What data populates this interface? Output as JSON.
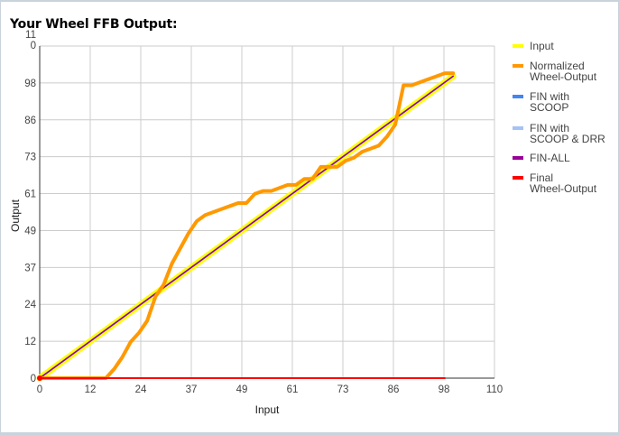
{
  "title": "Your Wheel FFB Output:",
  "chart_data": {
    "type": "line",
    "title": "Your Wheel FFB Output:",
    "xlabel": "Input",
    "ylabel": "Output",
    "xlim": [
      0,
      110
    ],
    "ylim": [
      0,
      110
    ],
    "xticks": [
      "0",
      "12",
      "24",
      "37",
      "49",
      "61",
      "73",
      "86",
      "98",
      "110"
    ],
    "yticks": [
      "0",
      "12",
      "24",
      "37",
      "49",
      "61",
      "73",
      "86",
      "98",
      "11\n0"
    ],
    "grid": true,
    "legend_position": "right",
    "series": [
      {
        "name": "Input",
        "color": "#ffff00",
        "x": [
          0,
          100
        ],
        "y": [
          0,
          100
        ]
      },
      {
        "name": "Normalized\nWheel-Output",
        "color": "#ff9900",
        "x": [
          0,
          2,
          5,
          8,
          11,
          14,
          16,
          18,
          20,
          22,
          24,
          26,
          28,
          30,
          32,
          34,
          36,
          38,
          40,
          42,
          44,
          46,
          48,
          50,
          52,
          54,
          56,
          58,
          60,
          62,
          64,
          66,
          68,
          70,
          72,
          74,
          76,
          78,
          80,
          82,
          84,
          86,
          88,
          90,
          92,
          94,
          96,
          98,
          100
        ],
        "y": [
          0,
          0,
          0,
          0,
          0,
          0,
          0,
          3,
          7,
          12,
          15,
          19,
          27,
          31,
          38,
          43,
          48,
          52,
          54,
          55,
          56,
          57,
          58,
          58,
          61,
          62,
          62,
          63,
          64,
          64,
          66,
          66,
          70,
          70,
          70,
          72,
          73,
          75,
          76,
          77,
          80,
          84,
          97,
          97,
          98,
          99,
          100,
          101,
          101
        ]
      },
      {
        "name": "FIN with\nSCOOP",
        "color": "#4285f4",
        "x": [
          0,
          100
        ],
        "y": [
          0,
          100
        ]
      },
      {
        "name": "FIN with\nSCOOP & DRR",
        "color": "#a4c2f4",
        "x": [
          0,
          100
        ],
        "y": [
          0,
          100
        ]
      },
      {
        "name": "FIN-ALL",
        "color": "#990099",
        "x": [
          0,
          100
        ],
        "y": [
          0,
          100
        ]
      },
      {
        "name": "Final\nWheel-Output",
        "color": "#ff0000",
        "x": [
          0,
          98
        ],
        "y": [
          0,
          0
        ]
      }
    ]
  }
}
